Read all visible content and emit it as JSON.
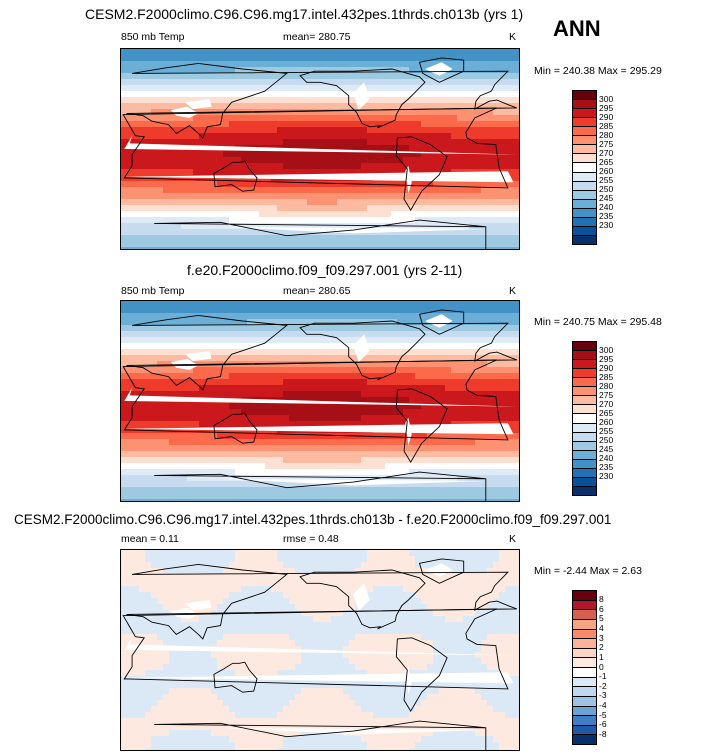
{
  "season": "ANN",
  "panels": [
    {
      "title": "CESM2.F2000climo.C96.C96.mg17.intel.432pes.1thrds.ch013b (yrs 1)",
      "left_label": "850 mb Temp",
      "center_label": "mean= 280.75",
      "right_label": "K",
      "minmax": "Min = 240.38 Max = 295.29"
    },
    {
      "title": "f.e20.F2000climo.f09_f09.297.001 (yrs 2-11)",
      "left_label": "850 mb Temp",
      "center_label": "mean= 280.65",
      "right_label": "K",
      "minmax": "Min = 240.75 Max = 295.48"
    },
    {
      "title": "CESM2.F2000climo.C96.C96.mg17.intel.432pes.1thrds.ch013b - f.e20.F2000climo.f09_f09.297.001",
      "left_label": "mean =   0.11",
      "center_label": "rmse =   0.48",
      "right_label": "K",
      "minmax": "Min =  -2.44 Max =   2.63"
    }
  ],
  "chart_data": [
    {
      "type": "heatmap",
      "title": "CESM2.F2000climo.C96.C96.mg17.intel.432pes.1thrds.ch013b (yrs 1)",
      "variable": "850 mb Temp",
      "units": "K",
      "mean": 280.75,
      "min": 240.38,
      "max": 295.29,
      "colorbar_levels": [
        300,
        295,
        290,
        285,
        280,
        275,
        270,
        265,
        260,
        255,
        250,
        245,
        240,
        235,
        230
      ],
      "colors": [
        "#67000d",
        "#a50f15",
        "#cb181d",
        "#ef3b2c",
        "#fb6a4a",
        "#fc9272",
        "#fcbba1",
        "#fee0d2",
        "#ffffff",
        "#deebf7",
        "#c6dbef",
        "#9ecae1",
        "#6baed6",
        "#4292c6",
        "#2171b5",
        "#08519c",
        "#08306b"
      ]
    },
    {
      "type": "heatmap",
      "title": "f.e20.F2000climo.f09_f09.297.001 (yrs 2-11)",
      "variable": "850 mb Temp",
      "units": "K",
      "mean": 280.65,
      "min": 240.75,
      "max": 295.48,
      "colorbar_levels": [
        300,
        295,
        290,
        285,
        280,
        275,
        270,
        265,
        260,
        255,
        250,
        245,
        240,
        235,
        230
      ]
    },
    {
      "type": "heatmap",
      "title": "CESM2.F2000climo.C96.C96.mg17.intel.432pes.1thrds.ch013b - f.e20.F2000climo.f09_f09.297.001",
      "units": "K",
      "mean": 0.11,
      "rmse": 0.48,
      "min": -2.44,
      "max": 2.63,
      "colorbar_levels": [
        8,
        6,
        5,
        4,
        3,
        2,
        1,
        0,
        -1,
        -2,
        -3,
        -4,
        -5,
        -6,
        -8
      ]
    }
  ]
}
